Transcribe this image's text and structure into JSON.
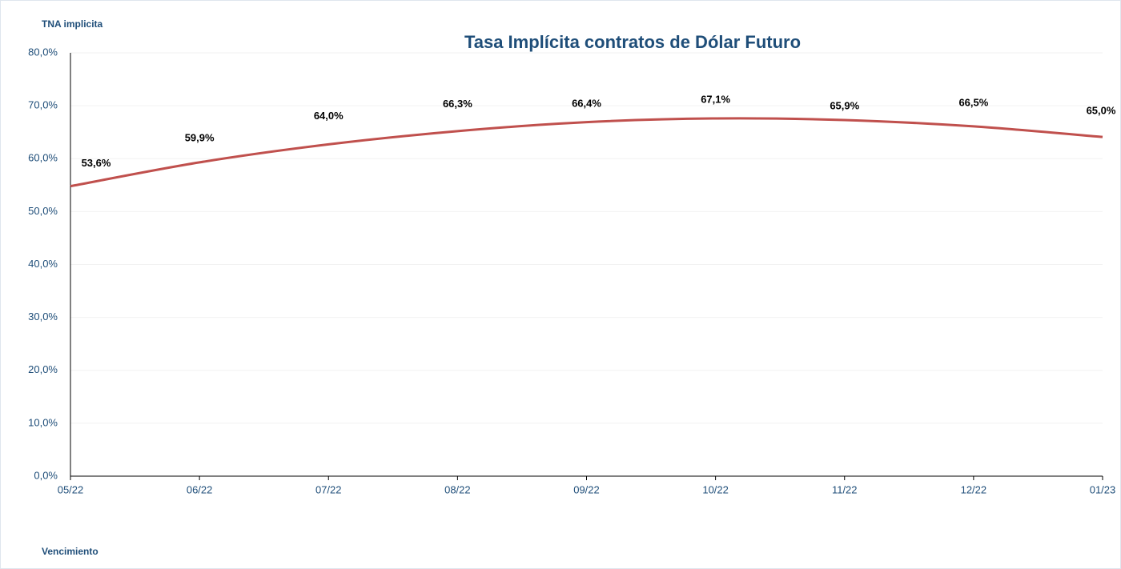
{
  "chart_data": {
    "type": "line",
    "title": "Tasa Implícita contratos de Dólar Futuro",
    "y_label": "TNA implicita",
    "x_label": "Vencimiento",
    "categories": [
      "05/22",
      "06/22",
      "07/22",
      "08/22",
      "09/22",
      "10/22",
      "11/22",
      "12/22",
      "01/23"
    ],
    "series": [
      {
        "values": [
          53.6,
          59.9,
          64.0,
          66.3,
          66.4,
          67.1,
          65.9,
          66.5,
          65.0
        ],
        "value_labels": [
          "53,6%",
          "59,9%",
          "64,0%",
          "66,3%",
          "66,4%",
          "67,1%",
          "65,9%",
          "66,5%",
          "65,0%"
        ]
      }
    ],
    "trendline": {
      "color": "#c0504d",
      "values": [
        54.8,
        59.3,
        62.7,
        65.2,
        66.9,
        67.6,
        67.3,
        66.1,
        64.1
      ]
    },
    "ylim": [
      0,
      80
    ],
    "yticks": [
      {
        "value": 0,
        "label": "0,0%"
      },
      {
        "value": 10,
        "label": "10,0%"
      },
      {
        "value": 20,
        "label": "20,0%"
      },
      {
        "value": 30,
        "label": "30,0%"
      },
      {
        "value": 40,
        "label": "40,0%"
      },
      {
        "value": 50,
        "label": "50,0%"
      },
      {
        "value": 60,
        "label": "60,0%"
      },
      {
        "value": 70,
        "label": "70,0%"
      },
      {
        "value": 80,
        "label": "80,0%"
      }
    ],
    "grid": true
  }
}
